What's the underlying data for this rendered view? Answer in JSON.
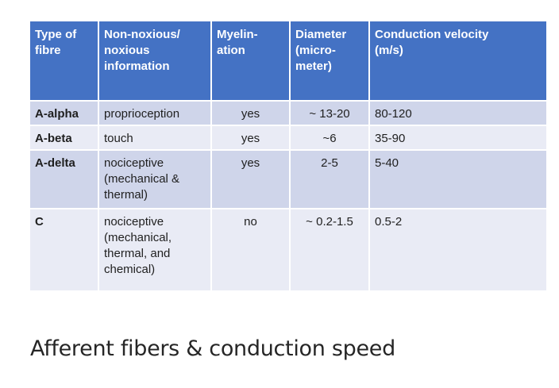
{
  "table": {
    "headers": [
      "Type of fibre",
      "Non-noxious/ noxious information",
      "Myelin-ation",
      "Diameter (micro-meter)",
      "Conduction velocity (m/s)"
    ],
    "header_lines": [
      [
        "Type of",
        "fibre"
      ],
      [
        "Non-noxious/",
        "noxious",
        "information"
      ],
      [
        "Myelin-",
        "ation"
      ],
      [
        "Diameter",
        "(micro-",
        "meter)"
      ],
      [
        "Conduction velocity",
        "(m/s)"
      ]
    ],
    "rows": [
      {
        "type": "A-alpha",
        "info_lines": [
          "proprioception"
        ],
        "myelination": "yes",
        "diameter": "~ 13-20",
        "velocity": "80-120"
      },
      {
        "type": "A-beta",
        "info_lines": [
          "touch"
        ],
        "myelination": "yes",
        "diameter": "~6",
        "velocity": "35-90"
      },
      {
        "type": "A-delta",
        "info_lines": [
          "nociceptive",
          "(mechanical &",
          "thermal)"
        ],
        "myelination": "yes",
        "diameter": "2-5",
        "velocity": "5-40"
      },
      {
        "type": "C",
        "info_lines": [
          "nociceptive",
          "(mechanical,",
          "thermal, and",
          "chemical)"
        ],
        "myelination": "no",
        "diameter": "~ 0.2-1.5",
        "velocity": "0.5-2"
      }
    ]
  },
  "caption": "Afferent fibers & conduction speed",
  "colors": {
    "header_bg": "#4472c4",
    "row_dark": "#cfd5ea",
    "row_light": "#e9ebf5",
    "text": "#1f1f1f"
  }
}
